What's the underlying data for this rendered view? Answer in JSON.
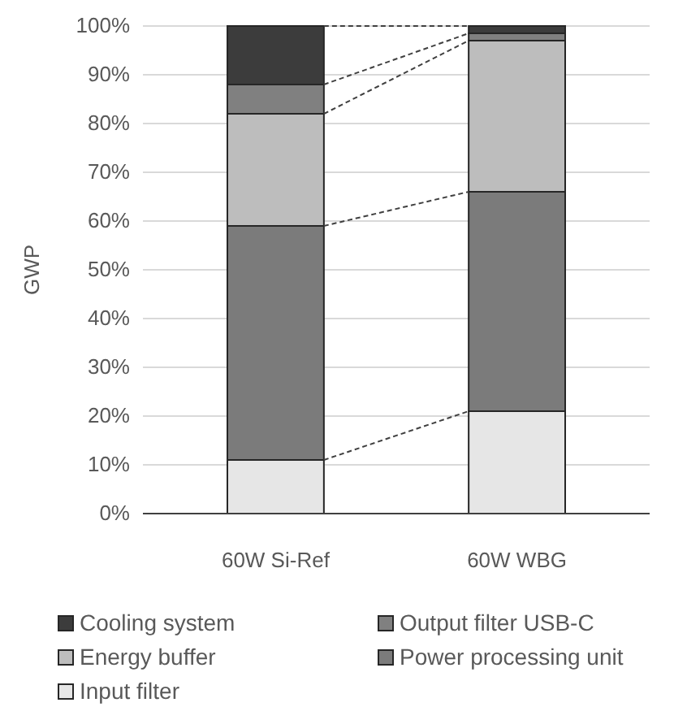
{
  "chart_data": {
    "type": "bar",
    "stacked": true,
    "ylabel": "GWP",
    "categories": [
      "60W Si-Ref",
      "60W WBG"
    ],
    "series": [
      {
        "name": "Input filter",
        "color": "#e6e6e6",
        "values": [
          11,
          21
        ]
      },
      {
        "name": "Power processing unit",
        "color": "#7b7b7b",
        "values": [
          48,
          45
        ]
      },
      {
        "name": "Energy buffer",
        "color": "#bdbdbd",
        "values": [
          23,
          31
        ]
      },
      {
        "name": "Output filter USB-C",
        "color": "#808080",
        "values": [
          6,
          1.5
        ]
      },
      {
        "name": "Cooling system",
        "color": "#3c3c3c",
        "values": [
          12,
          1.5
        ]
      }
    ],
    "ylim": [
      0,
      100
    ],
    "yticks": [
      {
        "value": 0,
        "label": "0%"
      },
      {
        "value": 10,
        "label": "10%"
      },
      {
        "value": 20,
        "label": "20%"
      },
      {
        "value": 30,
        "label": "30%"
      },
      {
        "value": 40,
        "label": "40%"
      },
      {
        "value": 50,
        "label": "50%"
      },
      {
        "value": 60,
        "label": "60%"
      },
      {
        "value": 70,
        "label": "70%"
      },
      {
        "value": 80,
        "label": "80%"
      },
      {
        "value": 90,
        "label": "90%"
      },
      {
        "value": 100,
        "label": "100%"
      }
    ],
    "grid": "y",
    "legend": "bottom"
  }
}
